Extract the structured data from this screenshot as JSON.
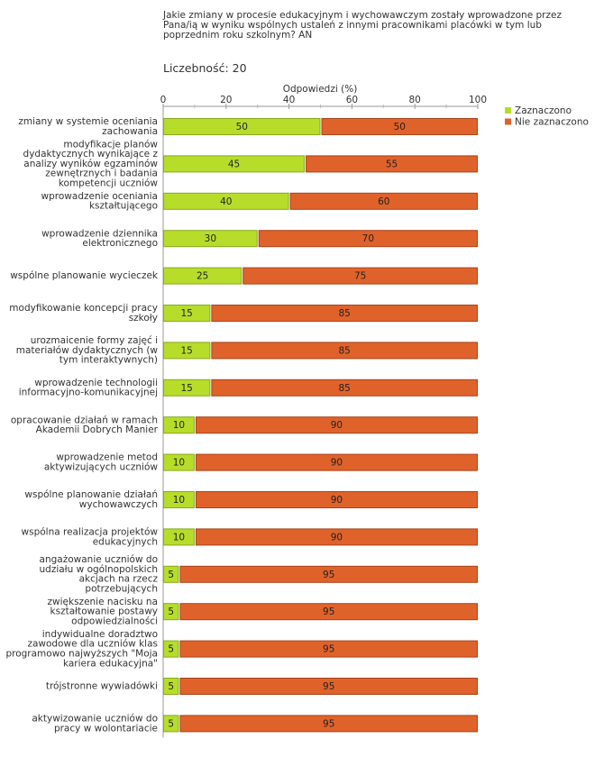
{
  "question": "Jakie zmiany w procesie edukacyjnym i wychowawczym zostały wprowadzone przez Pana/ią w wyniku wspólnych ustaleń z innymi pracownikami placówki w tym lub poprzednim roku szkolnym? AN",
  "sample": {
    "label": "Liczebność:",
    "value": "20"
  },
  "chart_data": {
    "type": "bar",
    "orientation": "horizontal",
    "stacked": true,
    "title": "",
    "xlabel": "Odpowiedzi (%)",
    "ylabel": "",
    "xlim": [
      0,
      100
    ],
    "x_ticks": [
      "0",
      "20",
      "40",
      "60",
      "80",
      "100"
    ],
    "legend_position": "top-right",
    "colors": {
      "Zaznaczono": "#b7dd2a",
      "Nie zaznaczono": "#e0622b"
    },
    "categories": [
      [
        "zmiany w systemie oceniania",
        "zachowania"
      ],
      [
        "modyfikacje planów",
        "dydaktycznych wynikające z",
        "analizy wyników egzaminów",
        "zewnętrznych i badania",
        "kompetencji uczniów"
      ],
      [
        "wprowadzenie oceniania",
        "kształtującego"
      ],
      [
        "wprowadzenie dziennika",
        "elektronicznego"
      ],
      [
        "wspólne planowanie wycieczek"
      ],
      [
        "modyfikowanie koncepcji pracy",
        "szkoły"
      ],
      [
        "urozmaicenie formy zajęć i",
        "materiałów dydaktycznych (w",
        "tym interaktywnych)"
      ],
      [
        "wprowadzenie technologii",
        "informacyjno-komunikacyjnej"
      ],
      [
        "opracowanie działań w ramach",
        "Akademii Dobrych Manier"
      ],
      [
        "wprowadzenie metod",
        "aktywizujących uczniów"
      ],
      [
        "wspólne planowanie działań",
        "wychowawczych"
      ],
      [
        "wspólna realizacja projektów",
        "edukacyjnych"
      ],
      [
        "angażowanie uczniów do",
        "udziału w ogólnopolskich",
        "akcjach na rzecz",
        "potrzebujących"
      ],
      [
        "zwiększenie nacisku na",
        "kształtowanie postawy",
        "odpowiedzialności"
      ],
      [
        "indywidualne doradztwo",
        "zawodowe dla uczniów klas",
        "programowo najwyższych \"Moja",
        "kariera edukacyjna\""
      ],
      [
        "trójstronne wywiadówki"
      ],
      [
        "aktywizowanie uczniów do",
        "pracy w wolontariacie"
      ]
    ],
    "series": [
      {
        "name": "Zaznaczono",
        "values": [
          50,
          45,
          40,
          30,
          25,
          15,
          15,
          15,
          10,
          10,
          10,
          10,
          5,
          5,
          5,
          5,
          5
        ]
      },
      {
        "name": "Nie zaznaczono",
        "values": [
          50,
          55,
          60,
          70,
          75,
          85,
          85,
          85,
          90,
          90,
          90,
          90,
          95,
          95,
          95,
          95,
          95
        ]
      }
    ]
  }
}
